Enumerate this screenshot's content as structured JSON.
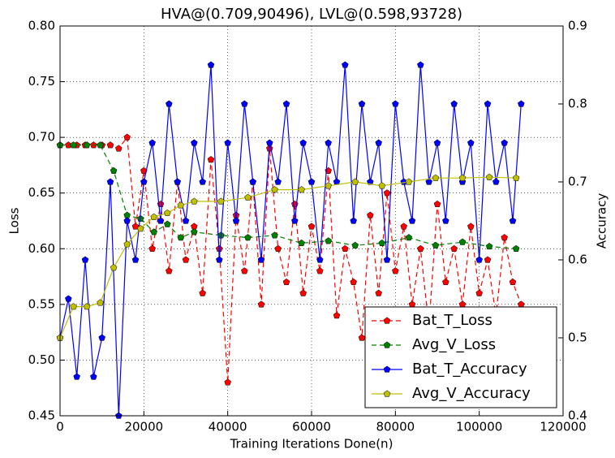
{
  "chart_data": {
    "type": "line",
    "title": "HVA@(0.709,90496), LVL@(0.598,93728)",
    "x_label": "Training Iterations Done(n)",
    "y_label": "Loss",
    "y2_label": "Accuracy",
    "xlim": [
      0,
      120000
    ],
    "xticks": [
      0,
      20000,
      40000,
      60000,
      80000,
      100000,
      120000
    ],
    "ylim": [
      0.45,
      0.8
    ],
    "yticks": [
      0.45,
      {
        "value": 0.5,
        "label": "0.50"
      },
      0.55,
      {
        "value": 0.6,
        "label": "0.60"
      },
      0.65,
      {
        "value": 0.7,
        "label": "0.70"
      },
      0.75,
      {
        "value": 0.8,
        "label": "0.80"
      }
    ],
    "y2lim": [
      0.4,
      0.9
    ],
    "y2ticks": [
      0.4,
      0.5,
      0.6,
      0.7,
      0.8,
      0.9
    ],
    "grid": true,
    "legend": "lower right",
    "series": [
      {
        "name": "Bat_T_Loss",
        "color": "#ff0000",
        "dashed": true,
        "x": [
          0,
          2000,
          4000,
          6000,
          8000,
          10000,
          12000,
          14000,
          16000,
          18000,
          20000,
          22000,
          24000,
          26000,
          28000,
          30000,
          32000,
          34000,
          36000,
          38000,
          40000,
          42000,
          44000,
          46000,
          48000,
          50000,
          52000,
          54000,
          56000,
          58000,
          60000,
          62000,
          64000,
          66000,
          68000,
          70000,
          72000,
          74000,
          76000,
          78000,
          80000,
          82000,
          84000,
          86000,
          88000,
          90000,
          92000,
          94000,
          96000,
          98000,
          100000,
          102000,
          104000,
          106000,
          108000,
          110000
        ],
        "values": [
          0.693,
          0.693,
          0.693,
          0.693,
          0.693,
          0.693,
          0.693,
          0.69,
          0.7,
          0.62,
          0.67,
          0.6,
          0.64,
          0.58,
          0.66,
          0.59,
          0.62,
          0.56,
          0.68,
          0.6,
          0.48,
          0.63,
          0.58,
          0.66,
          0.55,
          0.69,
          0.6,
          0.57,
          0.64,
          0.56,
          0.62,
          0.58,
          0.67,
          0.54,
          0.6,
          0.57,
          0.52,
          0.63,
          0.56,
          0.65,
          0.58,
          0.62,
          0.55,
          0.6,
          0.53,
          0.64,
          0.57,
          0.6,
          0.55,
          0.62,
          0.56,
          0.59,
          0.54,
          0.61,
          0.57,
          0.55
        ]
      },
      {
        "name": "Avg_V_Loss",
        "color": "#008000",
        "dashed": true,
        "x": [
          0,
          3200,
          6400,
          9600,
          12800,
          16000,
          19200,
          22400,
          25600,
          28800,
          32000,
          38400,
          44800,
          51200,
          57600,
          64000,
          70400,
          76800,
          83200,
          89600,
          96000,
          102400,
          108800
        ],
        "values": [
          0.693,
          0.693,
          0.693,
          0.693,
          0.67,
          0.63,
          0.627,
          0.615,
          0.622,
          0.61,
          0.615,
          0.612,
          0.61,
          0.612,
          0.605,
          0.607,
          0.603,
          0.605,
          0.61,
          0.603,
          0.606,
          0.602,
          0.6
        ]
      },
      {
        "name": "Bat_T_Accuracy",
        "color": "#0000ff",
        "axis": "y2",
        "x": [
          0,
          2000,
          4000,
          6000,
          8000,
          10000,
          12000,
          14000,
          16000,
          18000,
          20000,
          22000,
          24000,
          26000,
          28000,
          30000,
          32000,
          34000,
          36000,
          38000,
          40000,
          42000,
          44000,
          46000,
          48000,
          50000,
          52000,
          54000,
          56000,
          58000,
          60000,
          62000,
          64000,
          66000,
          68000,
          70000,
          72000,
          74000,
          76000,
          78000,
          80000,
          82000,
          84000,
          86000,
          88000,
          90000,
          92000,
          94000,
          96000,
          98000,
          100000,
          102000,
          104000,
          106000,
          108000,
          110000
        ],
        "values": [
          0.5,
          0.55,
          0.45,
          0.6,
          0.45,
          0.5,
          0.7,
          0.4,
          0.65,
          0.6,
          0.7,
          0.75,
          0.65,
          0.8,
          0.7,
          0.65,
          0.75,
          0.7,
          0.85,
          0.6,
          0.75,
          0.65,
          0.8,
          0.7,
          0.6,
          0.75,
          0.7,
          0.8,
          0.65,
          0.75,
          0.7,
          0.6,
          0.75,
          0.7,
          0.85,
          0.65,
          0.8,
          0.7,
          0.75,
          0.6,
          0.8,
          0.7,
          0.65,
          0.85,
          0.7,
          0.75,
          0.65,
          0.8,
          0.7,
          0.75,
          0.6,
          0.8,
          0.7,
          0.75,
          0.65,
          0.8
        ]
      },
      {
        "name": "Avg_V_Accuracy",
        "color": "#bfbf00",
        "axis": "y2",
        "x": [
          0,
          3200,
          6400,
          9600,
          12800,
          16000,
          19200,
          22400,
          25600,
          28800,
          32000,
          38400,
          44800,
          51200,
          57600,
          64000,
          70400,
          76800,
          83200,
          89600,
          96000,
          102400,
          108800
        ],
        "values": [
          0.5,
          0.54,
          0.54,
          0.545,
          0.59,
          0.62,
          0.64,
          0.655,
          0.66,
          0.67,
          0.675,
          0.675,
          0.68,
          0.69,
          0.69,
          0.695,
          0.7,
          0.695,
          0.7,
          0.705,
          0.705,
          0.706,
          0.705
        ]
      }
    ]
  }
}
